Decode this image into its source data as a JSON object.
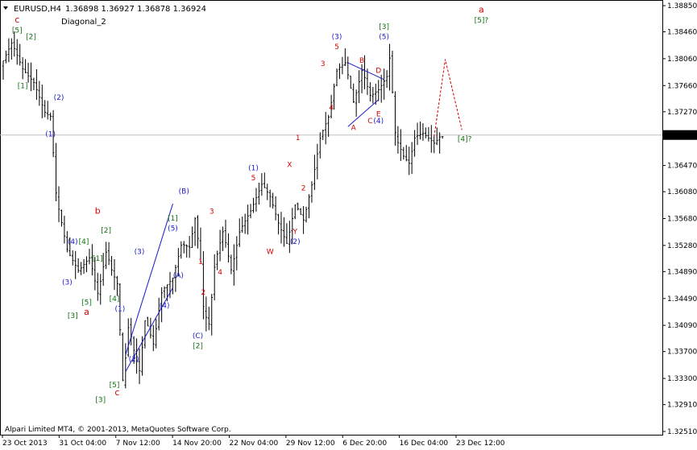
{
  "header": {
    "symbol": "EURUSD,H4",
    "ohlc": "1.36898 1.36927 1.36878 1.36924",
    "indicator": "Diagonal_2"
  },
  "footer": {
    "copyright": "Alpari Limited MT4, © 2001-2013, MetaQuotes Software Corp."
  },
  "colors": {
    "candles": "#000000",
    "red": "#d40000",
    "blue": "#1a1acc",
    "green": "#107010",
    "grid_line": "#c0c0c0"
  },
  "chart_data": {
    "type": "candlestick",
    "title": "EURUSD,H4",
    "ylim": [
      1.3251,
      1.3885
    ],
    "y_ticks": [
      "1.38850",
      "1.38460",
      "1.38060",
      "1.37660",
      "1.37270",
      "1.36470",
      "1.36080",
      "1.35680",
      "1.35280",
      "1.34890",
      "1.34490",
      "1.34090",
      "1.33700",
      "1.33300",
      "1.32910",
      "1.32510"
    ],
    "current_price": "1.36924",
    "x_ticks": [
      "23 Oct 2013",
      "31 Oct 04:00",
      "7 Nov 12:00",
      "14 Nov 20:00",
      "22 Nov 04:00",
      "29 Nov 12:00",
      "6 Dec 20:00",
      "16 Dec 04:00",
      "23 Dec 12:00"
    ],
    "bars_count": 150,
    "price_path": [
      [
        0,
        1.3795
      ],
      [
        4,
        1.383
      ],
      [
        8,
        1.379
      ],
      [
        12,
        1.377
      ],
      [
        16,
        1.3725
      ],
      [
        18,
        1.372
      ],
      [
        20,
        1.36
      ],
      [
        24,
        1.352
      ],
      [
        28,
        1.349
      ],
      [
        32,
        1.351
      ],
      [
        35,
        1.3455
      ],
      [
        38,
        1.352
      ],
      [
        40,
        1.349
      ],
      [
        42,
        1.347
      ],
      [
        44,
        1.332
      ],
      [
        46,
        1.341
      ],
      [
        48,
        1.337
      ],
      [
        50,
        1.334
      ],
      [
        52,
        1.342
      ],
      [
        55,
        1.338
      ],
      [
        58,
        1.346
      ],
      [
        62,
        1.348
      ],
      [
        65,
        1.353
      ],
      [
        68,
        1.3525
      ],
      [
        70,
        1.357
      ],
      [
        72,
        1.35
      ],
      [
        73,
        1.343
      ],
      [
        75,
        1.341
      ],
      [
        77,
        1.35
      ],
      [
        80,
        1.355
      ],
      [
        83,
        1.349
      ],
      [
        86,
        1.355
      ],
      [
        90,
        1.358
      ],
      [
        94,
        1.362
      ],
      [
        97,
        1.36
      ],
      [
        100,
        1.356
      ],
      [
        103,
        1.353
      ],
      [
        106,
        1.359
      ],
      [
        109,
        1.3565
      ],
      [
        112,
        1.362
      ],
      [
        115,
        1.369
      ],
      [
        118,
        1.372
      ],
      [
        121,
        1.379
      ],
      [
        124,
        1.38
      ],
      [
        127,
        1.374
      ],
      [
        130,
        1.379
      ],
      [
        133,
        1.375
      ],
      [
        136,
        1.376
      ],
      [
        139,
        1.378
      ],
      [
        140,
        1.381
      ],
      [
        142,
        1.369
      ],
      [
        145,
        1.366
      ],
      [
        147,
        1.365
      ],
      [
        149,
        1.369
      ],
      [
        152,
        1.3695
      ],
      [
        156,
        1.368
      ],
      [
        158,
        1.369
      ]
    ],
    "price_path_units": "[bar index, price]",
    "wave_labels": [
      {
        "text": "c",
        "color": "red",
        "bar": 5,
        "price": 1.386
      },
      {
        "text": "[5]",
        "color": "green",
        "bar": 5,
        "price": 1.3845
      },
      {
        "text": "[2]",
        "color": "green",
        "bar": 10,
        "price": 1.3835
      },
      {
        "text": "[1]",
        "color": "green",
        "bar": 7,
        "price": 1.3762
      },
      {
        "text": "(2)",
        "color": "blue",
        "bar": 20,
        "price": 1.3745
      },
      {
        "text": "(1)",
        "color": "blue",
        "bar": 17,
        "price": 1.369
      },
      {
        "text": "b",
        "color": "red",
        "bar": 34,
        "price": 1.3575
      },
      {
        "text": "[2]",
        "color": "green",
        "bar": 37,
        "price": 1.3547
      },
      {
        "text": "(4)",
        "color": "blue",
        "bar": 25,
        "price": 1.353
      },
      {
        "text": "[4]",
        "color": "green",
        "bar": 29,
        "price": 1.353
      },
      {
        "text": "[1]",
        "color": "green",
        "bar": 34,
        "price": 1.3505
      },
      {
        "text": "(3)",
        "color": "blue",
        "bar": 23,
        "price": 1.347
      },
      {
        "text": "[5]",
        "color": "green",
        "bar": 30,
        "price": 1.344
      },
      {
        "text": "a",
        "color": "red",
        "bar": 30,
        "price": 1.3425
      },
      {
        "text": "[3]",
        "color": "green",
        "bar": 25,
        "price": 1.342
      },
      {
        "text": "[4]",
        "color": "green",
        "bar": 40,
        "price": 1.3445
      },
      {
        "text": "(1)",
        "color": "blue",
        "bar": 42,
        "price": 1.343
      },
      {
        "text": "(3)",
        "color": "blue",
        "bar": 49,
        "price": 1.3515
      },
      {
        "text": "(4)",
        "color": "blue",
        "bar": 58,
        "price": 1.3435
      },
      {
        "text": "(2)",
        "color": "blue",
        "bar": 47,
        "price": 1.3355
      },
      {
        "text": "[5]",
        "color": "green",
        "bar": 40,
        "price": 1.3317
      },
      {
        "text": "c",
        "color": "red",
        "bar": 41,
        "price": 1.3305
      },
      {
        "text": "[3]",
        "color": "green",
        "bar": 35,
        "price": 1.3295
      },
      {
        "text": "(B)",
        "color": "blue",
        "bar": 65,
        "price": 1.3605
      },
      {
        "text": "[1]",
        "color": "green",
        "bar": 61,
        "price": 1.3565
      },
      {
        "text": "(5)",
        "color": "blue",
        "bar": 61,
        "price": 1.355
      },
      {
        "text": "(A)",
        "color": "blue",
        "bar": 63,
        "price": 1.348
      },
      {
        "text": "(C)",
        "color": "blue",
        "bar": 70,
        "price": 1.339
      },
      {
        "text": "[2]",
        "color": "green",
        "bar": 70,
        "price": 1.3375
      },
      {
        "text": "3",
        "color": "red",
        "bar": 75,
        "price": 1.3575
      },
      {
        "text": "1",
        "color": "red",
        "bar": 71,
        "price": 1.35
      },
      {
        "text": "2",
        "color": "red",
        "bar": 72,
        "price": 1.3455
      },
      {
        "text": "4",
        "color": "red",
        "bar": 78,
        "price": 1.3485
      },
      {
        "text": "(1)",
        "color": "blue",
        "bar": 90,
        "price": 1.364
      },
      {
        "text": "5",
        "color": "red",
        "bar": 90,
        "price": 1.3625
      },
      {
        "text": "X",
        "color": "red",
        "bar": 103,
        "price": 1.3645
      },
      {
        "text": "W",
        "color": "red",
        "bar": 96,
        "price": 1.3515
      },
      {
        "text": "Y",
        "color": "red",
        "bar": 105,
        "price": 1.3545
      },
      {
        "text": "(2)",
        "color": "blue",
        "bar": 105,
        "price": 1.353
      },
      {
        "text": "1",
        "color": "red",
        "bar": 106,
        "price": 1.3685
      },
      {
        "text": "2",
        "color": "red",
        "bar": 108,
        "price": 1.361
      },
      {
        "text": "3",
        "color": "red",
        "bar": 115,
        "price": 1.3795
      },
      {
        "text": "(3)",
        "color": "blue",
        "bar": 120,
        "price": 1.3835
      },
      {
        "text": "5",
        "color": "red",
        "bar": 120,
        "price": 1.382
      },
      {
        "text": "4",
        "color": "red",
        "bar": 118,
        "price": 1.373
      },
      {
        "text": "B",
        "color": "red",
        "bar": 129,
        "price": 1.38
      },
      {
        "text": "D",
        "color": "red",
        "bar": 135,
        "price": 1.3785
      },
      {
        "text": "[3]",
        "color": "green",
        "bar": 137,
        "price": 1.385
      },
      {
        "text": "(5)",
        "color": "blue",
        "bar": 137,
        "price": 1.3835
      },
      {
        "text": "E",
        "color": "red",
        "bar": 135,
        "price": 1.372
      },
      {
        "text": "C",
        "color": "red",
        "bar": 132,
        "price": 1.371
      },
      {
        "text": "(4)",
        "color": "blue",
        "bar": 135,
        "price": 1.371
      },
      {
        "text": "A",
        "color": "red",
        "bar": 126,
        "price": 1.37
      },
      {
        "text": "a",
        "color": "red",
        "bar": 172,
        "price": 1.3875
      },
      {
        "text": "[5]?",
        "color": "green",
        "bar": 172,
        "price": 1.386
      },
      {
        "text": "[4]?",
        "color": "green",
        "bar": 166,
        "price": 1.3683
      }
    ],
    "trendlines": [
      {
        "color": "blue",
        "from": [
          44,
          1.3365
        ],
        "to": [
          61,
          1.359
        ]
      },
      {
        "color": "blue",
        "from": [
          44,
          1.334
        ],
        "to": [
          61,
          1.3465
        ]
      },
      {
        "color": "blue",
        "from": [
          124,
          1.3705
        ],
        "to": [
          135,
          1.3745
        ]
      },
      {
        "color": "blue",
        "from": [
          124,
          1.38
        ],
        "to": [
          137,
          1.3775
        ]
      }
    ],
    "projection": {
      "color": "red",
      "style": "dashed",
      "points": [
        [
          155,
          1.369
        ],
        [
          159,
          1.3805
        ],
        [
          165,
          1.37
        ]
      ]
    }
  }
}
